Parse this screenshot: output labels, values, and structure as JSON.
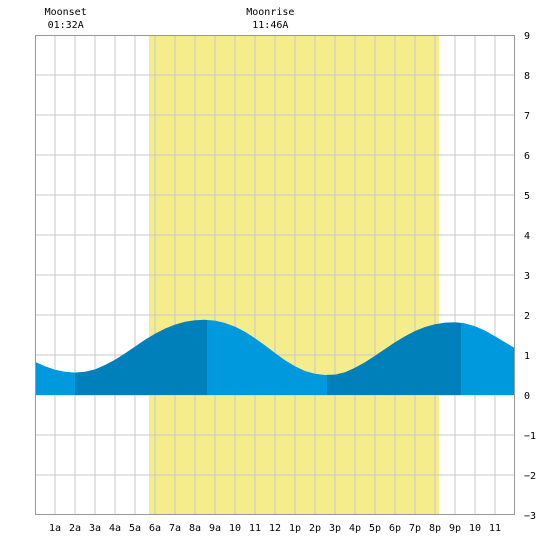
{
  "chart_data": {
    "type": "area",
    "title": "",
    "xlabel": "",
    "ylabel": "",
    "xlim": [
      0,
      24
    ],
    "ylim": [
      -3,
      9
    ],
    "grid": true,
    "x_ticks": [
      {
        "x": 1,
        "label": "1a"
      },
      {
        "x": 2,
        "label": "2a"
      },
      {
        "x": 3,
        "label": "3a"
      },
      {
        "x": 4,
        "label": "4a"
      },
      {
        "x": 5,
        "label": "5a"
      },
      {
        "x": 6,
        "label": "6a"
      },
      {
        "x": 7,
        "label": "7a"
      },
      {
        "x": 8,
        "label": "8a"
      },
      {
        "x": 9,
        "label": "9a"
      },
      {
        "x": 10,
        "label": "10"
      },
      {
        "x": 11,
        "label": "11"
      },
      {
        "x": 12,
        "label": "12"
      },
      {
        "x": 13,
        "label": "1p"
      },
      {
        "x": 14,
        "label": "2p"
      },
      {
        "x": 15,
        "label": "3p"
      },
      {
        "x": 16,
        "label": "4p"
      },
      {
        "x": 17,
        "label": "5p"
      },
      {
        "x": 18,
        "label": "6p"
      },
      {
        "x": 19,
        "label": "7p"
      },
      {
        "x": 20,
        "label": "8p"
      },
      {
        "x": 21,
        "label": "9p"
      },
      {
        "x": 22,
        "label": "10"
      },
      {
        "x": 23,
        "label": "11"
      }
    ],
    "y_ticks": [
      -3,
      -2,
      -1,
      0,
      1,
      2,
      3,
      4,
      5,
      6,
      7,
      8,
      9
    ],
    "daylight": {
      "start": 5.7,
      "end": 20.2,
      "color": "#f5ec8c"
    },
    "annotations": [
      {
        "name": "moonset",
        "label": "Moonset",
        "time": "01:32A",
        "x": 1.533
      },
      {
        "name": "moonrise",
        "label": "Moonrise",
        "time": "11:46A",
        "x": 11.767
      }
    ],
    "tide": {
      "x": [
        0,
        0.5,
        1,
        1.5,
        2,
        2.5,
        3,
        3.5,
        4,
        4.5,
        5,
        5.5,
        6,
        6.5,
        7,
        7.5,
        8,
        8.5,
        9,
        9.5,
        10,
        10.5,
        11,
        11.5,
        12,
        12.5,
        13,
        13.5,
        14,
        14.5,
        15,
        15.5,
        16,
        16.5,
        17,
        17.5,
        18,
        18.5,
        19,
        19.5,
        20,
        20.5,
        21,
        21.5,
        22,
        22.5,
        23,
        23.5,
        24
      ],
      "y": [
        0.83,
        0.72,
        0.63,
        0.58,
        0.56,
        0.58,
        0.64,
        0.75,
        0.88,
        1.04,
        1.21,
        1.38,
        1.53,
        1.66,
        1.76,
        1.83,
        1.87,
        1.88,
        1.86,
        1.8,
        1.71,
        1.58,
        1.42,
        1.24,
        1.05,
        0.87,
        0.72,
        0.6,
        0.53,
        0.5,
        0.51,
        0.57,
        0.68,
        0.82,
        0.98,
        1.15,
        1.32,
        1.47,
        1.6,
        1.7,
        1.77,
        1.81,
        1.82,
        1.79,
        1.72,
        1.61,
        1.47,
        1.32,
        1.17
      ]
    },
    "segments": [
      {
        "start": 0,
        "end": 2,
        "shade": "light"
      },
      {
        "start": 2,
        "end": 8.6,
        "shade": "dark"
      },
      {
        "start": 8.6,
        "end": 14.6,
        "shade": "light"
      },
      {
        "start": 14.6,
        "end": 21.3,
        "shade": "dark"
      },
      {
        "start": 21.3,
        "end": 24,
        "shade": "light"
      }
    ],
    "colors": {
      "light": "#0099dd",
      "dark": "#0080bb",
      "grid": "#c8c8c8",
      "border": "#999999"
    }
  }
}
